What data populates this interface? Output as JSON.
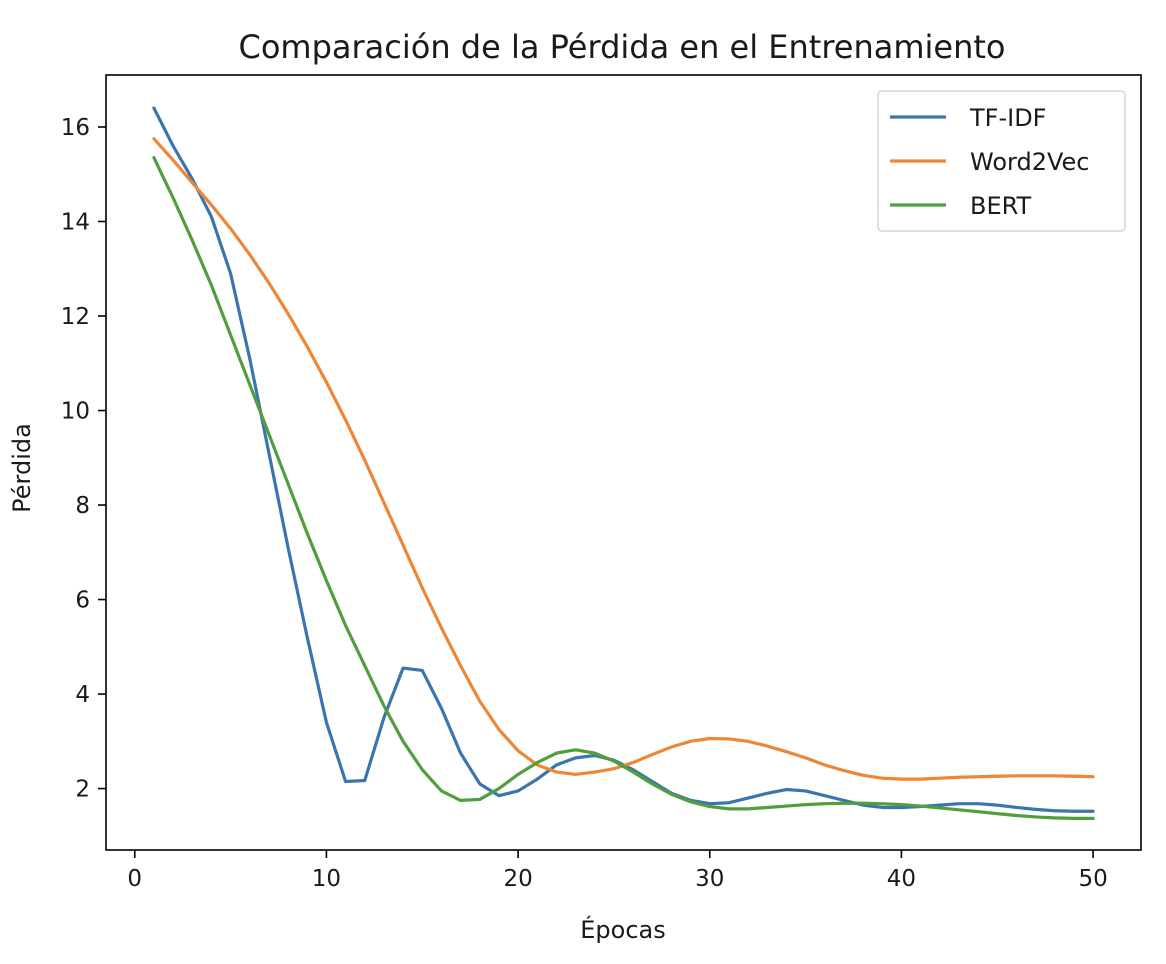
{
  "chart_data": {
    "type": "line",
    "title": "Comparación de la Pérdida en el Entrenamiento",
    "xlabel": "Épocas",
    "ylabel": "Pérdida",
    "xlim": [
      -1.5,
      52.5
    ],
    "ylim": [
      0.7,
      17.1
    ],
    "xticks": [
      0,
      10,
      20,
      30,
      40,
      50
    ],
    "yticks": [
      2,
      4,
      6,
      8,
      10,
      12,
      14,
      16
    ],
    "grid": false,
    "legend_position": "top-right",
    "x": [
      1,
      2,
      3,
      4,
      5,
      6,
      7,
      8,
      9,
      10,
      11,
      12,
      13,
      14,
      15,
      16,
      17,
      18,
      19,
      20,
      21,
      22,
      23,
      24,
      25,
      26,
      27,
      28,
      29,
      30,
      31,
      32,
      33,
      34,
      35,
      36,
      37,
      38,
      39,
      40,
      41,
      42,
      43,
      44,
      45,
      46,
      47,
      48,
      49,
      50
    ],
    "series": [
      {
        "name": "TF-IDF",
        "color": "#3b75af",
        "values": [
          16.4,
          15.6,
          14.9,
          14.1,
          12.9,
          11.1,
          9.1,
          7.1,
          5.2,
          3.4,
          2.15,
          2.17,
          3.5,
          4.55,
          4.5,
          3.7,
          2.75,
          2.1,
          1.85,
          1.95,
          2.2,
          2.5,
          2.65,
          2.7,
          2.6,
          2.4,
          2.15,
          1.9,
          1.75,
          1.68,
          1.7,
          1.8,
          1.9,
          1.98,
          1.95,
          1.85,
          1.75,
          1.65,
          1.6,
          1.6,
          1.62,
          1.65,
          1.68,
          1.68,
          1.65,
          1.6,
          1.56,
          1.53,
          1.52,
          1.52
        ]
      },
      {
        "name": "Word2Vec",
        "color": "#ef8636",
        "values": [
          15.75,
          15.3,
          14.82,
          14.35,
          13.85,
          13.3,
          12.7,
          12.05,
          11.35,
          10.6,
          9.8,
          8.95,
          8.05,
          7.15,
          6.25,
          5.4,
          4.6,
          3.85,
          3.25,
          2.8,
          2.5,
          2.35,
          2.3,
          2.35,
          2.42,
          2.55,
          2.72,
          2.88,
          3.0,
          3.06,
          3.05,
          3.0,
          2.9,
          2.78,
          2.65,
          2.5,
          2.38,
          2.28,
          2.22,
          2.2,
          2.2,
          2.22,
          2.24,
          2.25,
          2.26,
          2.27,
          2.27,
          2.27,
          2.26,
          2.25
        ]
      },
      {
        "name": "BERT",
        "color": "#519e3e",
        "values": [
          15.35,
          14.5,
          13.6,
          12.65,
          11.6,
          10.55,
          9.5,
          8.45,
          7.4,
          6.4,
          5.45,
          4.6,
          3.75,
          3.0,
          2.4,
          1.95,
          1.75,
          1.77,
          2.0,
          2.3,
          2.55,
          2.75,
          2.82,
          2.75,
          2.58,
          2.35,
          2.1,
          1.88,
          1.72,
          1.62,
          1.57,
          1.57,
          1.6,
          1.63,
          1.66,
          1.68,
          1.69,
          1.69,
          1.68,
          1.66,
          1.63,
          1.59,
          1.55,
          1.51,
          1.47,
          1.43,
          1.4,
          1.38,
          1.37,
          1.37
        ]
      }
    ]
  }
}
